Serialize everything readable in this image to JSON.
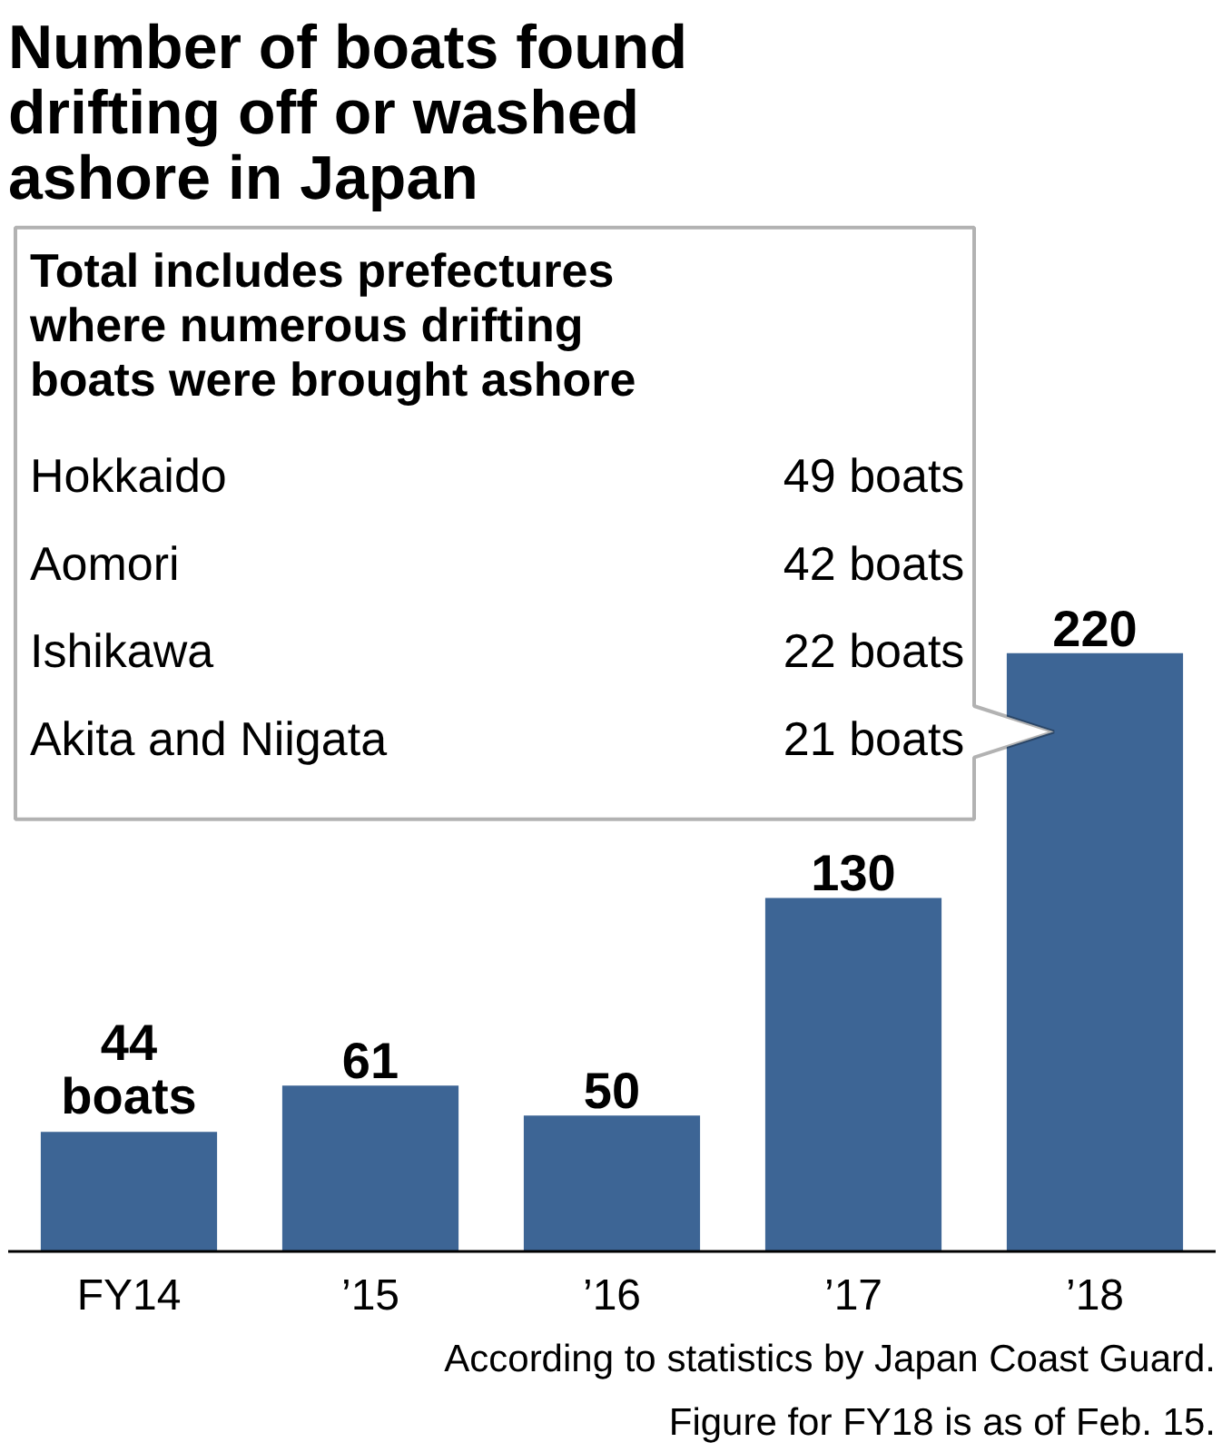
{
  "chart_data": {
    "type": "bar",
    "title": "Number of boats found drifting off or washed ashore in Japan",
    "categories": [
      "FY14",
      "’15",
      "’16",
      "’17",
      "’18"
    ],
    "values": [
      44,
      61,
      50,
      130,
      220
    ],
    "color": "#3d6595",
    "value_labels": [
      "44 boats",
      "61",
      "50",
      "130",
      "220"
    ],
    "annotations": [
      "Total includes prefectures where numerous drifting boats were brought ashore",
      "Hokkaido",
      "49 boats",
      "Aomori",
      "42 boats",
      "Ishikawa",
      "22 boats",
      "Akita and Niigata",
      "21 boats",
      "According to statistics by Japan Coast Guard.",
      "Figure for FY18 is as of Feb. 15."
    ]
  }
}
